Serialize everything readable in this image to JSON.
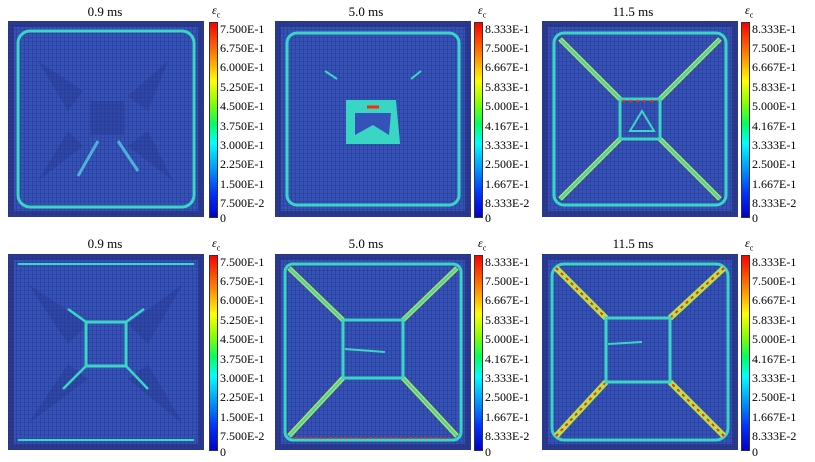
{
  "colorbar_title": "ε",
  "colorbar_title_sub": "c",
  "panels": [
    {
      "time": "0.9 ms",
      "ticks": [
        "7.500E-1",
        "6.750E-1",
        "6.000E-1",
        "5.250E-1",
        "4.500E-1",
        "3.750E-1",
        "3.000E-1",
        "2.250E-1",
        "1.500E-1",
        "7.500E-2",
        "0"
      ]
    },
    {
      "time": "5.0 ms",
      "ticks": [
        "8.333E-1",
        "7.500E-1",
        "6.667E-1",
        "5.833E-1",
        "5.000E-1",
        "4.167E-1",
        "3.333E-1",
        "2.500E-1",
        "1.667E-1",
        "8.333E-2",
        "0"
      ]
    },
    {
      "time": "11.5 ms",
      "ticks": [
        "8.333E-1",
        "7.500E-1",
        "6.667E-1",
        "5.833E-1",
        "5.000E-1",
        "4.167E-1",
        "3.333E-1",
        "2.500E-1",
        "1.667E-1",
        "8.333E-2",
        "0"
      ]
    },
    {
      "time": "0.9 ms",
      "ticks": [
        "7.500E-1",
        "6.750E-1",
        "6.000E-1",
        "5.250E-1",
        "4.500E-1",
        "3.750E-1",
        "3.000E-1",
        "2.250E-1",
        "1.500E-1",
        "7.500E-2",
        "0"
      ]
    },
    {
      "time": "5.0 ms",
      "ticks": [
        "8.333E-1",
        "7.500E-1",
        "6.667E-1",
        "5.833E-1",
        "5.000E-1",
        "4.167E-1",
        "3.333E-1",
        "2.500E-1",
        "1.667E-1",
        "8.333E-2",
        "0"
      ]
    },
    {
      "time": "11.5 ms",
      "ticks": [
        "8.333E-1",
        "7.500E-1",
        "6.667E-1",
        "5.833E-1",
        "5.000E-1",
        "4.167E-1",
        "3.333E-1",
        "2.500E-1",
        "1.667E-1",
        "8.333E-2",
        "0"
      ]
    }
  ],
  "colors": {
    "background": "#2b3a8f",
    "slab": "#3552b8",
    "crack_low": "#3ad6c4",
    "crack_high": "#ff2a00"
  }
}
